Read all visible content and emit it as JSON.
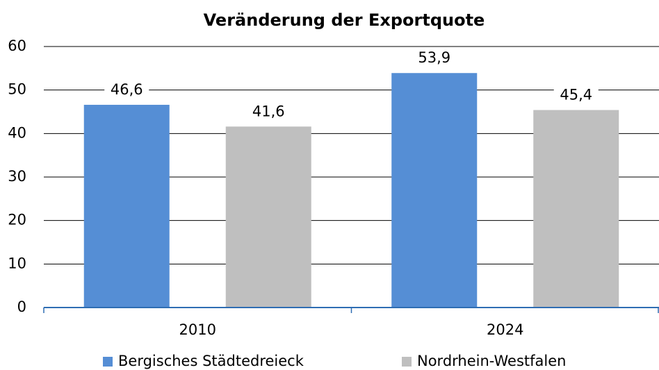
{
  "chart_data": {
    "type": "bar",
    "title": "Veränderung der Exportquote",
    "categories": [
      "2010",
      "2024"
    ],
    "series": [
      {
        "name": "Bergisches Städtedreieck",
        "color": "#558ed5",
        "values": [
          46.6,
          53.9
        ],
        "value_labels": [
          "46,6",
          "53,9"
        ]
      },
      {
        "name": "Nordrhein-Westfalen",
        "color": "#bfbfbf",
        "values": [
          41.6,
          45.4
        ],
        "value_labels": [
          "41,6",
          "45,4"
        ]
      }
    ],
    "ylim": [
      0,
      60
    ],
    "yticks": [
      0,
      10,
      20,
      30,
      40,
      50,
      60
    ],
    "grid": true,
    "legend": "bottom"
  }
}
